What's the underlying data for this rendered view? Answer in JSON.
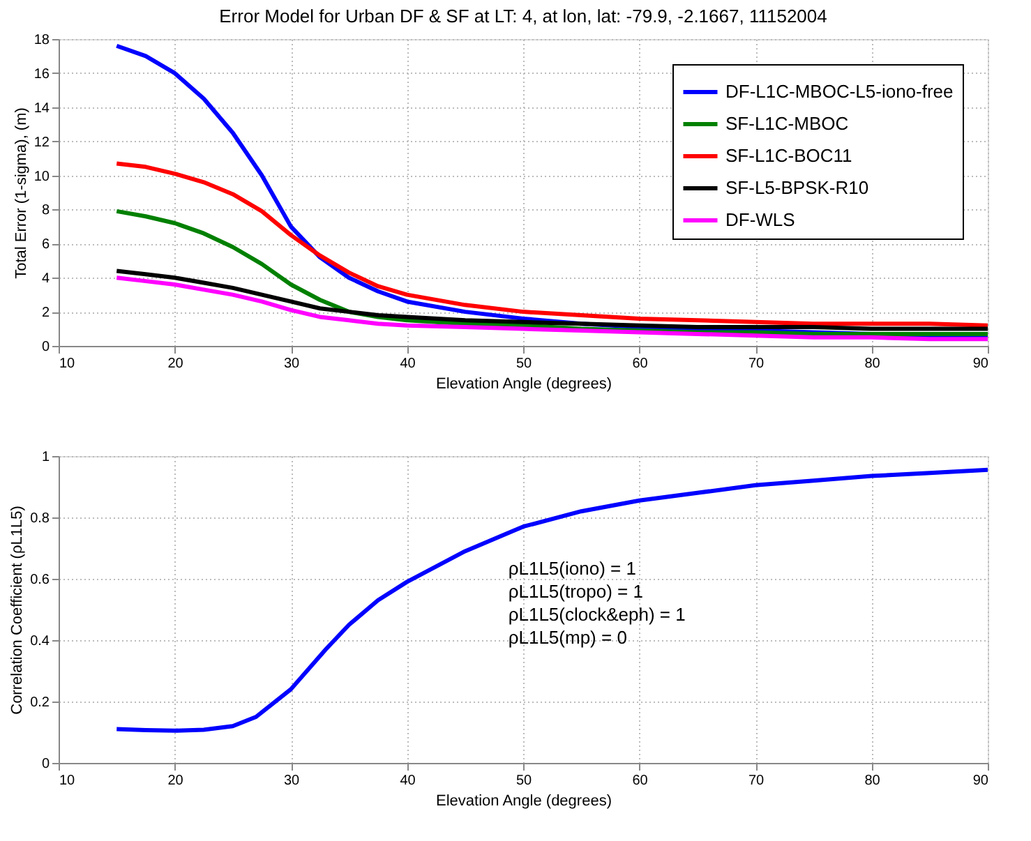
{
  "chart_data": [
    {
      "type": "line",
      "title": "Error Model for Urban DF & SF at LT: 4, at lon, lat: -79.9, -2.1667, 11152004",
      "xlabel": "Elevation Angle (degrees)",
      "ylabel": "Total Error (1-sigma), (m)",
      "x": [
        15,
        17.5,
        20,
        22.5,
        25,
        27.5,
        30,
        32.5,
        35,
        37.5,
        40,
        45,
        50,
        55,
        60,
        65,
        70,
        75,
        80,
        85,
        90
      ],
      "series": [
        {
          "name": "DF-L1C-MBOC-L5-iono-free",
          "color": "#0000ff",
          "values": [
            17.6,
            17.0,
            16.0,
            14.5,
            12.5,
            10.0,
            7.0,
            5.2,
            4.0,
            3.2,
            2.6,
            2.0,
            1.6,
            1.3,
            1.1,
            1.0,
            0.9,
            0.8,
            0.7,
            0.6,
            0.6
          ]
        },
        {
          "name": "SF-L1C-MBOC",
          "color": "#008000",
          "values": [
            7.9,
            7.6,
            7.2,
            6.6,
            5.8,
            4.8,
            3.6,
            2.7,
            2.0,
            1.7,
            1.5,
            1.3,
            1.2,
            1.0,
            0.9,
            0.8,
            0.8,
            0.7,
            0.7,
            0.7,
            0.7
          ]
        },
        {
          "name": "SF-L1C-BOC11",
          "color": "#ff0000",
          "values": [
            10.7,
            10.5,
            10.1,
            9.6,
            8.9,
            7.9,
            6.5,
            5.3,
            4.3,
            3.5,
            3.0,
            2.4,
            2.0,
            1.8,
            1.6,
            1.5,
            1.4,
            1.3,
            1.3,
            1.3,
            1.2
          ]
        },
        {
          "name": "SF-L5-BPSK-R10",
          "color": "#000000",
          "values": [
            4.4,
            4.2,
            4.0,
            3.7,
            3.4,
            3.0,
            2.6,
            2.2,
            2.0,
            1.8,
            1.7,
            1.5,
            1.4,
            1.3,
            1.2,
            1.1,
            1.1,
            1.1,
            1.0,
            1.0,
            1.0
          ]
        },
        {
          "name": "DF-WLS",
          "color": "#ff00ff",
          "values": [
            4.0,
            3.8,
            3.6,
            3.3,
            3.0,
            2.6,
            2.1,
            1.7,
            1.5,
            1.3,
            1.2,
            1.1,
            1.0,
            0.9,
            0.8,
            0.7,
            0.6,
            0.5,
            0.5,
            0.4,
            0.4
          ]
        }
      ],
      "xlim": [
        10,
        90
      ],
      "xticks": [
        10,
        20,
        30,
        40,
        50,
        60,
        70,
        80,
        90
      ],
      "ylim": [
        0,
        18
      ],
      "yticks": [
        0,
        2,
        4,
        6,
        8,
        10,
        12,
        14,
        16,
        18
      ],
      "grid": true,
      "legend": "top right"
    },
    {
      "type": "line",
      "xlabel": "Elevation Angle (degrees)",
      "ylabel": "Correlation Coefficient (ρL1L5)",
      "x": [
        15,
        17.5,
        20,
        22.5,
        25,
        27,
        30,
        33,
        35,
        37.5,
        40,
        45,
        50,
        55,
        60,
        65,
        70,
        75,
        80,
        85,
        90
      ],
      "series": [
        {
          "color": "#0000ff",
          "values": [
            0.11,
            0.107,
            0.105,
            0.108,
            0.12,
            0.15,
            0.24,
            0.37,
            0.45,
            0.53,
            0.59,
            0.69,
            0.77,
            0.82,
            0.855,
            0.88,
            0.905,
            0.92,
            0.935,
            0.945,
            0.955
          ]
        }
      ],
      "xlim": [
        10,
        90
      ],
      "xticks": [
        10,
        20,
        30,
        40,
        50,
        60,
        70,
        80,
        90
      ],
      "ylim": [
        0,
        1
      ],
      "yticks": [
        0,
        0.2,
        0.4,
        0.6,
        0.8,
        1
      ],
      "grid": true,
      "annotations": [
        "ρL1L5(iono) = 1",
        "ρL1L5(tropo) = 1",
        "ρL1L5(clock&eph) = 1",
        "ρL1L5(mp) = 0"
      ]
    }
  ]
}
